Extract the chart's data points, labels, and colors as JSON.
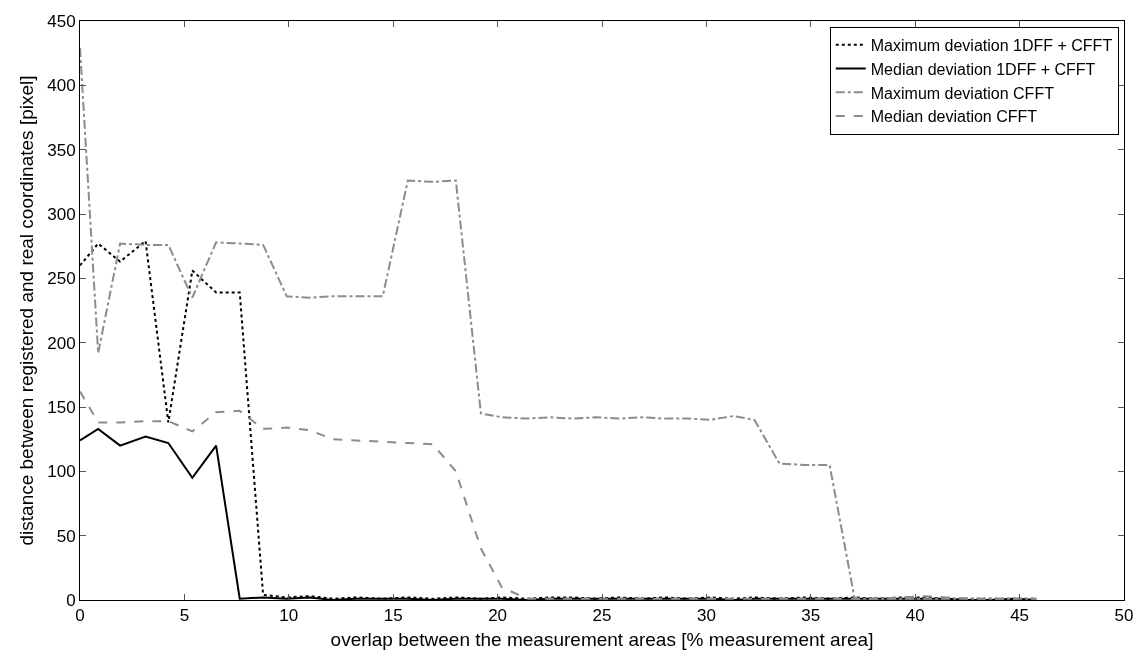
{
  "chart_data": {
    "type": "line",
    "xlabel": "overlap between the measurement areas [% measurement area]",
    "ylabel": "distance between registered and real coordinates [pixel]",
    "x": [
      0,
      0.87,
      1.92,
      3.14,
      4.23,
      5.38,
      6.52,
      7.65,
      8.77,
      9.9,
      11.0,
      12.1,
      13.2,
      14.5,
      15.7,
      16.9,
      18.0,
      19.2,
      20.2,
      21.4,
      22.5,
      23.6,
      24.7,
      25.8,
      26.9,
      28.0,
      29.1,
      30.2,
      31.3,
      32.3,
      33.5,
      34.7,
      35.9,
      37.1,
      38.2,
      39.3,
      40.4,
      41.5,
      42.6,
      43.6,
      44.7,
      45.8
    ],
    "series": [
      {
        "name": "Maximum deviation 1DFF + CFFT",
        "color": "#000000",
        "line_style": "dotted",
        "values": [
          260,
          277,
          263,
          279,
          138,
          256,
          239,
          239,
          4,
          2,
          3,
          1,
          2,
          1,
          2,
          1,
          2,
          1,
          2,
          1,
          2,
          2,
          1,
          2,
          1,
          2,
          1,
          2,
          1,
          2,
          1,
          2,
          1,
          2,
          1,
          2,
          2,
          1,
          1,
          1,
          1,
          1
        ]
      },
      {
        "name": "Median deviation 1DFF + CFFT",
        "color": "#000000",
        "line_style": "solid",
        "values": [
          124,
          133,
          120,
          127,
          122,
          95,
          120,
          1,
          2,
          1,
          2,
          0,
          1,
          1,
          1,
          0,
          1,
          1,
          1,
          0,
          1,
          1,
          1,
          1,
          1,
          1,
          1,
          1,
          0,
          1,
          1,
          1,
          1,
          1,
          1,
          1,
          1,
          1,
          0,
          0,
          1,
          0
        ]
      },
      {
        "name": "Maximum deviation CFFT",
        "color": "#8c8c8c",
        "line_style": "dashdot",
        "values": [
          429,
          192,
          277,
          276,
          276,
          235,
          278,
          277,
          276,
          236,
          235,
          236,
          236,
          236,
          326,
          325,
          326,
          145,
          142,
          141,
          142,
          141,
          142,
          141,
          142,
          141,
          141,
          140,
          143,
          140,
          106,
          105,
          105,
          1,
          1,
          1,
          1,
          1,
          1,
          1,
          1,
          1
        ]
      },
      {
        "name": "Median deviation CFFT",
        "color": "#8c8c8c",
        "line_style": "dashed",
        "values": [
          162,
          138,
          138,
          139,
          139,
          131,
          146,
          147,
          133,
          134,
          132,
          125,
          124,
          123,
          122,
          121,
          100,
          40,
          10,
          1,
          1,
          1,
          1,
          1,
          1,
          1,
          1,
          1,
          1,
          1,
          1,
          1,
          1,
          1,
          1,
          2,
          3,
          2,
          1,
          1,
          1,
          1
        ]
      }
    ],
    "xlim": [
      0,
      50
    ],
    "xticks": [
      0,
      5,
      10,
      15,
      20,
      25,
      30,
      35,
      40,
      45,
      50
    ],
    "ylim": [
      0,
      450
    ],
    "yticks": [
      0,
      50,
      100,
      150,
      200,
      250,
      300,
      350,
      400,
      450
    ],
    "grid": false,
    "legend": "top right",
    "marker": "none"
  }
}
